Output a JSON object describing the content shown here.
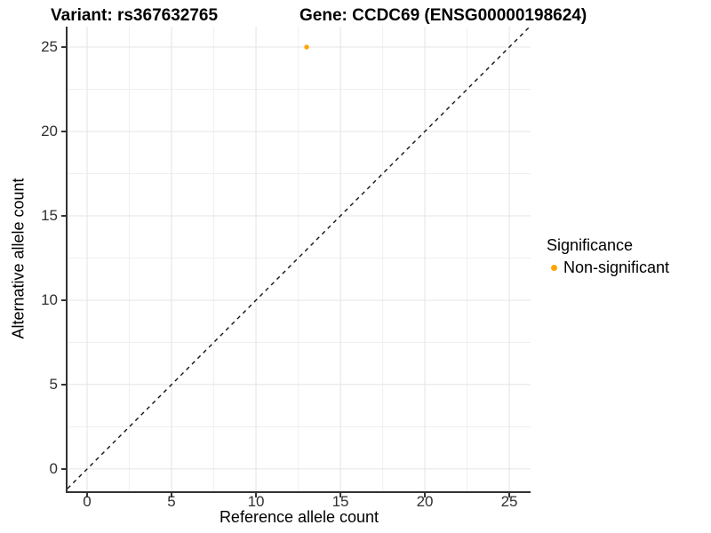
{
  "chart_data": {
    "type": "scatter",
    "titles": {
      "left": "Variant: rs367632765",
      "right": "Gene: CCDC69 (ENSG00000198624)"
    },
    "xlabel": "Reference allele count",
    "ylabel": "Alternative allele count",
    "xlim": [
      -1.16,
      26.26
    ],
    "ylim": [
      -1.32,
      26.21
    ],
    "xticks": [
      0,
      5,
      10,
      15,
      20,
      25
    ],
    "yticks": [
      0,
      5,
      10,
      15,
      20,
      25
    ],
    "minor_step": 2.5,
    "grid": "major+minor",
    "identity_line": {
      "equation": "y = x",
      "style": "dashed",
      "color": "#111111"
    },
    "points": [
      {
        "x": 13,
        "y": 25,
        "series": "Non-significant"
      }
    ],
    "legend": {
      "title": "Significance",
      "position": "right",
      "items": [
        {
          "label": "Non-significant",
          "color": "#FFA500"
        }
      ]
    },
    "colors": {
      "point": "#FFA500",
      "grid_major": "#E4E4E4",
      "grid_minor": "#EFEFEF",
      "axis_line": "#333333",
      "tick_text": "#303030",
      "title_text": "#000000"
    }
  }
}
